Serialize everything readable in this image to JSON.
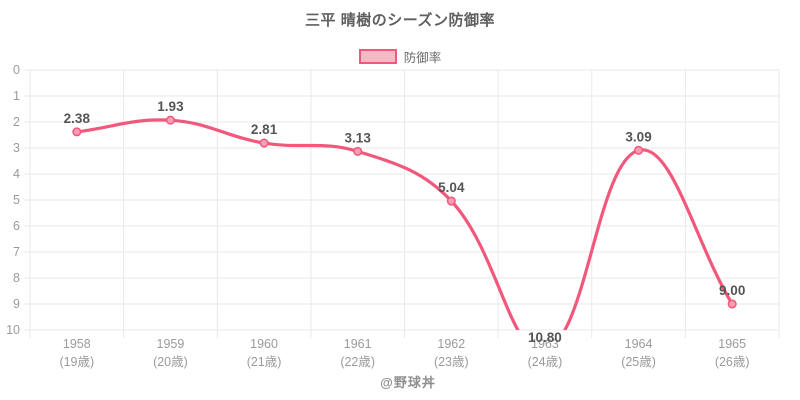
{
  "title": "三平 晴樹のシーズン防御率",
  "legend": {
    "label": "防御率"
  },
  "footer": "@野球丼",
  "colors": {
    "line": "#f2577c",
    "point_fill": "#f79db4",
    "legend_fill": "#f9b8c6",
    "grid": "#e9e9e9",
    "tick_label": "#9b9b9b",
    "data_label": "#555555"
  },
  "chart_data": {
    "type": "line",
    "title": "三平 晴樹のシーズン防御率",
    "series_label": "防御率",
    "categories": [
      "1958",
      "1959",
      "1960",
      "1961",
      "1962",
      "1963",
      "1964",
      "1965"
    ],
    "category_sublabels": [
      "(19歳)",
      "(20歳)",
      "(21歳)",
      "(22歳)",
      "(23歳)",
      "(24歳)",
      "(25歳)",
      "(26歳)"
    ],
    "values": [
      2.38,
      1.93,
      2.81,
      3.13,
      5.04,
      10.8,
      3.09,
      9.0
    ],
    "y_axis": {
      "min": 0,
      "max": 10,
      "step": 1,
      "inverted": true
    },
    "legend_position": "top",
    "grid": true,
    "line_tension": 0.4
  }
}
